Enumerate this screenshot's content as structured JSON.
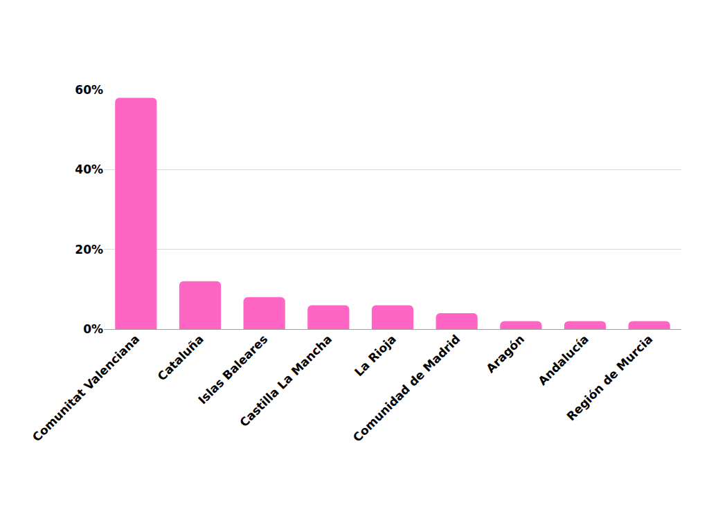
{
  "chart_data": {
    "type": "bar",
    "categories": [
      "Comunitat Valenciana",
      "Cataluña",
      "Islas Baleares",
      "Castilla La Mancha",
      "La Rioja",
      "Comunidad de Madrid",
      "Aragón",
      "Andalucía",
      "Región de Murcia"
    ],
    "values": [
      58,
      12,
      8,
      6,
      6,
      4,
      2,
      2,
      2
    ],
    "color": "#ff66c4",
    "ylim": [
      0,
      60
    ],
    "yticks": [
      {
        "value": 0,
        "label": "0%"
      },
      {
        "value": 20,
        "label": "20%"
      },
      {
        "value": 40,
        "label": "40%"
      },
      {
        "value": 60,
        "label": "60%"
      }
    ],
    "grid": true
  }
}
